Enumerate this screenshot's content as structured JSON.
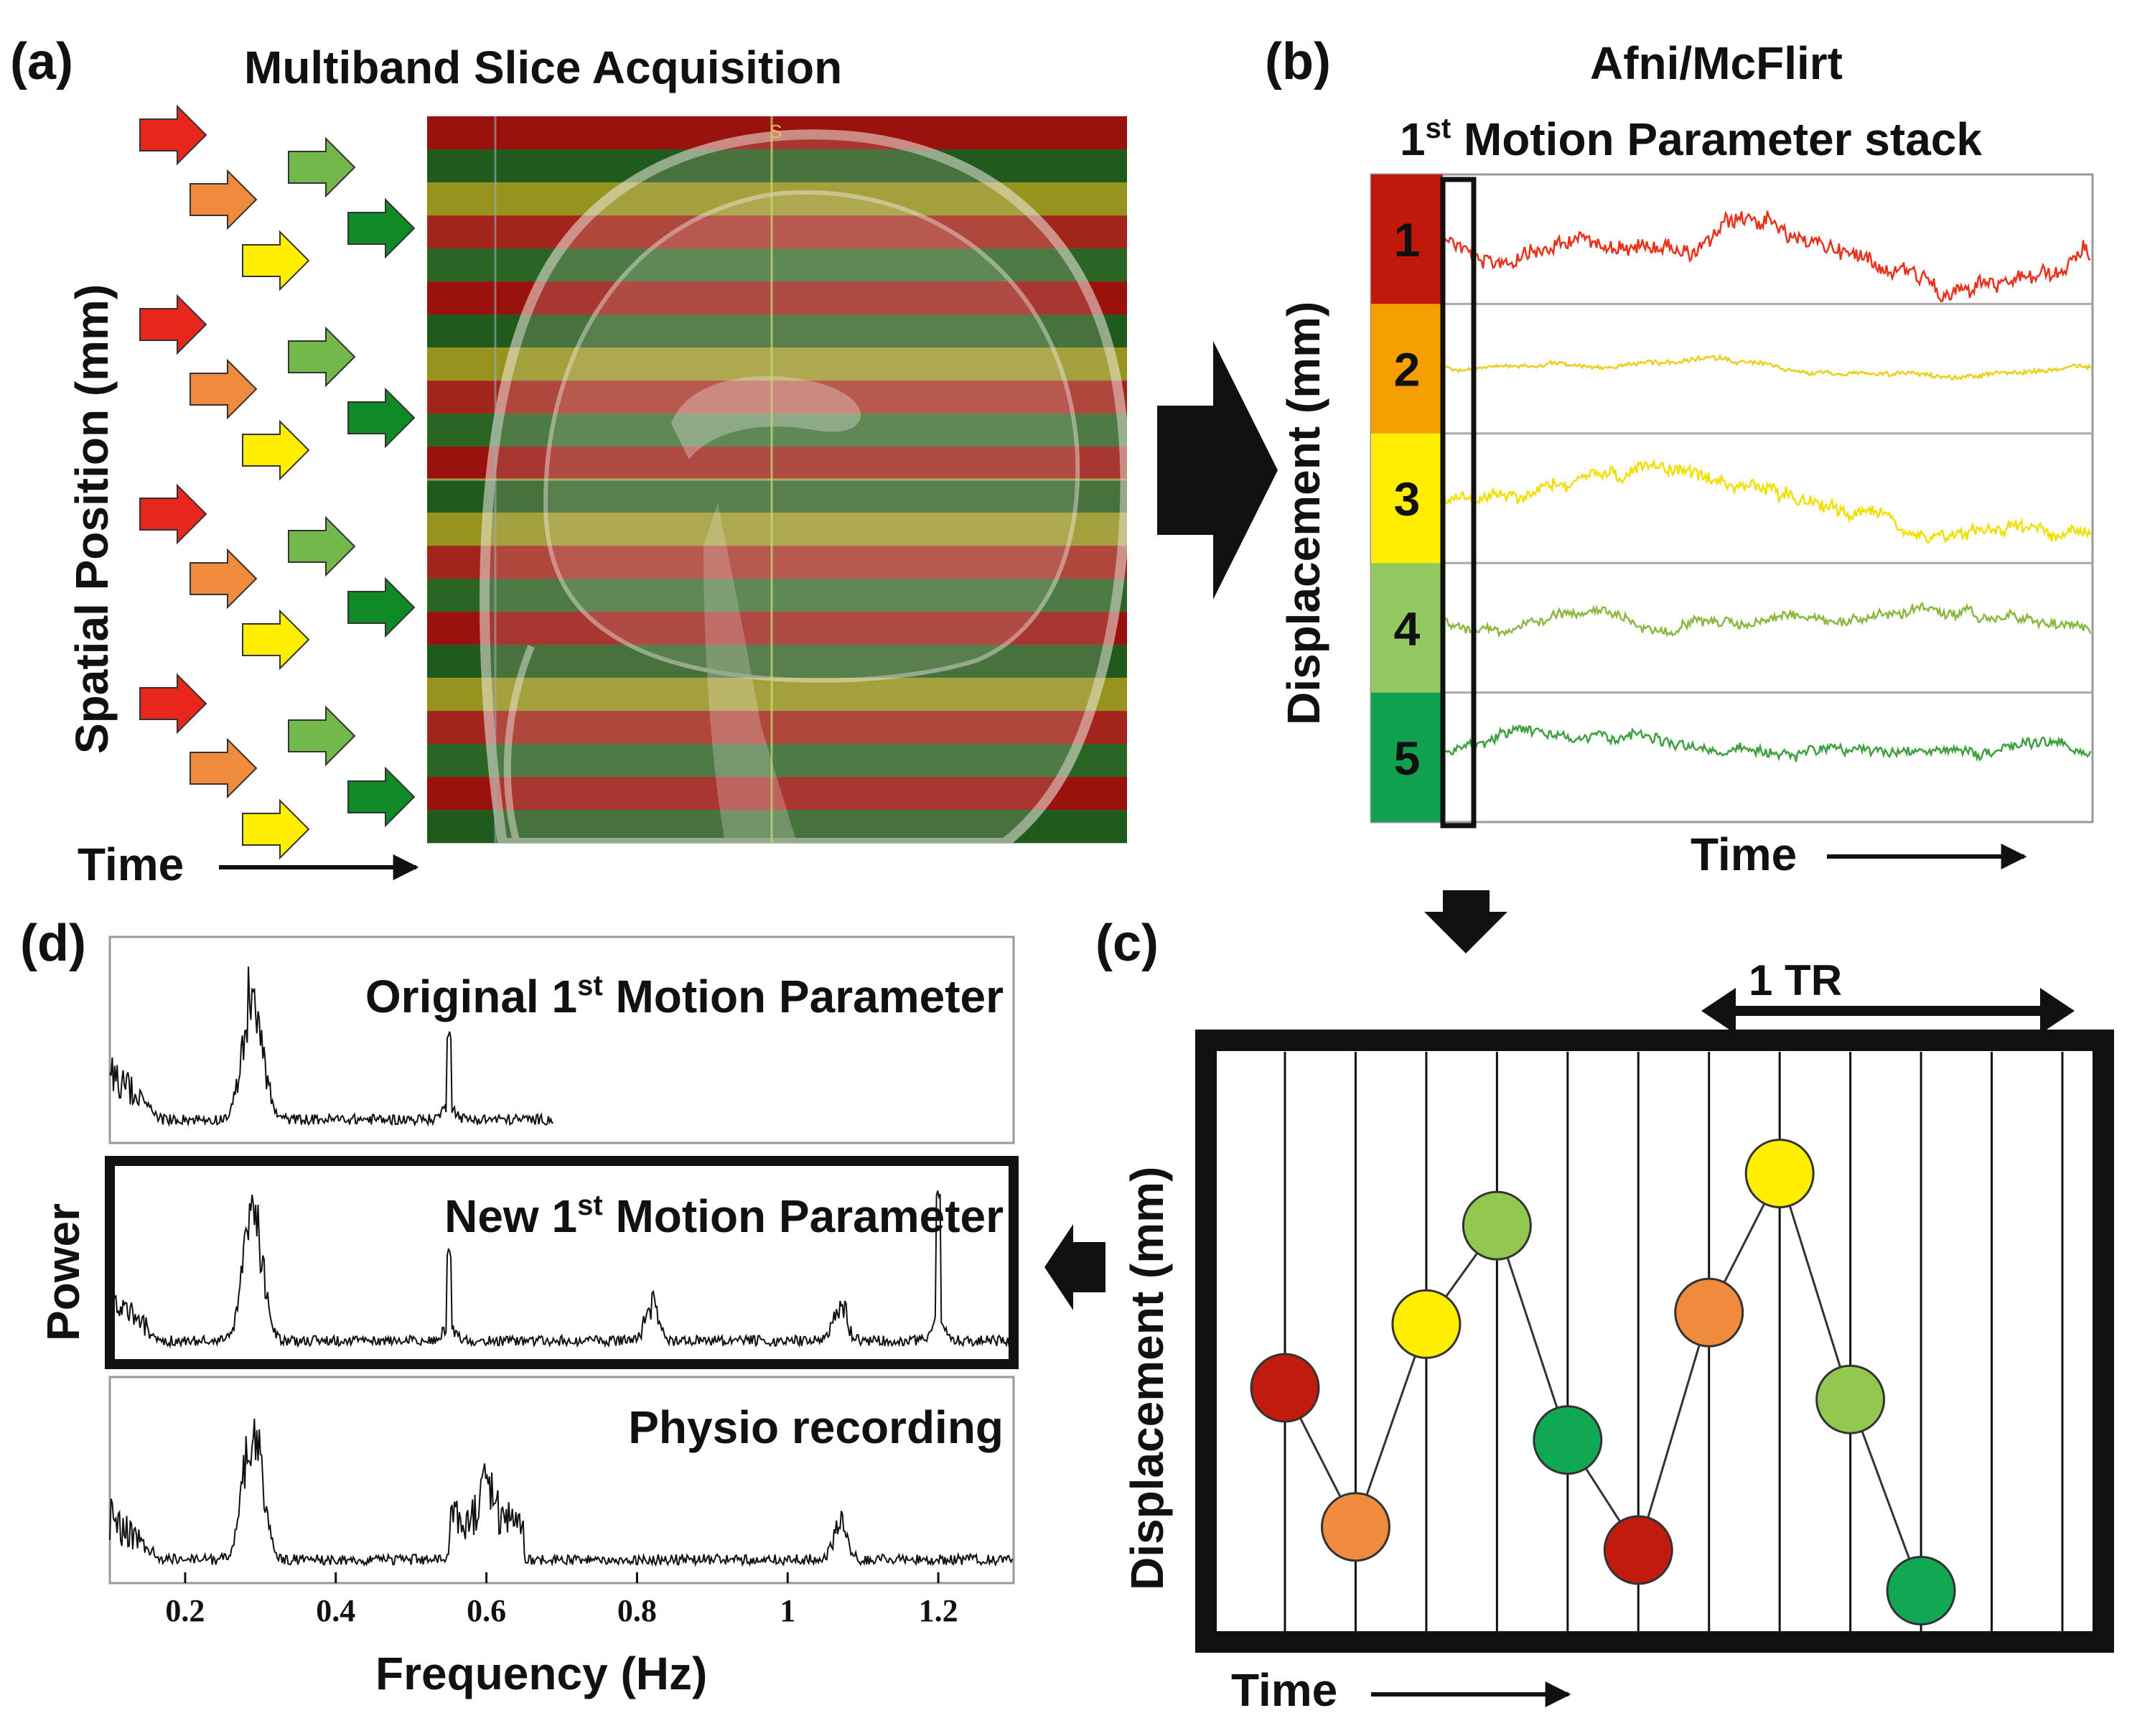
{
  "panels": {
    "a": {
      "label": "(a)",
      "title": "Multiband Slice Acquisition",
      "y_axis_label": "Spatial Position (mm)",
      "x_axis_label": "Time",
      "band_colors": [
        "#b80f0a",
        "#1f6b1f",
        "#b5b520",
        "#c4281e",
        "#2a7a2a"
      ],
      "arrow_colors": [
        "#e8261c",
        "#f08a3c",
        "#ffee00",
        "#72b84a",
        "#0f8a26"
      ]
    },
    "b": {
      "label": "(b)",
      "title_line1": "Afni/McFlirt",
      "title_line2_sup": "st",
      "title_line2_prefix": "1",
      "title_line2_rest": " Motion Parameter stack",
      "y_axis_label": "Displacement (mm)",
      "x_axis_label": "Time",
      "traces": [
        {
          "index": "1",
          "swatch": "#c1180c",
          "line": "#e8321c"
        },
        {
          "index": "2",
          "swatch": "#f5a000",
          "line": "#e8d020"
        },
        {
          "index": "3",
          "swatch": "#ffee00",
          "line": "#f0e000"
        },
        {
          "index": "4",
          "swatch": "#92c860",
          "line": "#8ab840"
        },
        {
          "index": "5",
          "swatch": "#10a050",
          "line": "#40a040"
        }
      ]
    },
    "c": {
      "label": "(c)",
      "tr_label": "1 TR",
      "y_axis_label": "Displacement (mm)",
      "x_axis_label": "Time",
      "points": [
        {
          "color": "#c11b0e"
        },
        {
          "color": "#f08a3c"
        },
        {
          "color": "#ffee00"
        },
        {
          "color": "#92c850"
        },
        {
          "color": "#10a852"
        },
        {
          "color": "#c11b0e"
        },
        {
          "color": "#f08a3c"
        },
        {
          "color": "#ffee00"
        },
        {
          "color": "#92c850"
        },
        {
          "color": "#10a852"
        }
      ]
    },
    "d": {
      "label": "(d)",
      "y_axis_label": "Power",
      "x_axis_label": "Frequency (Hz)",
      "spectra": [
        {
          "prefix": "Original 1",
          "sup": "st",
          "rest": " Motion Parameter"
        },
        {
          "prefix": "New 1",
          "sup": "st",
          "rest": " Motion Parameter"
        },
        {
          "prefix": "Physio recording",
          "sup": "",
          "rest": ""
        }
      ],
      "x_ticks": [
        "0.2",
        "0.4",
        "0.6",
        "0.8",
        "1",
        "1.2"
      ]
    }
  },
  "chart_data": {
    "type": "line",
    "xlabel": "Frequency (Hz)",
    "ylabel": "Power",
    "xlim": [
      0.1,
      1.3
    ],
    "x_ticks": [
      0.2,
      0.4,
      0.6,
      0.8,
      1,
      1.2
    ],
    "series": [
      {
        "name": "Original 1st Motion Parameter",
        "peaks_hz": [
          0.29,
          0.55
        ],
        "x_max": 0.69
      },
      {
        "name": "New 1st Motion Parameter",
        "peaks_hz": [
          0.29,
          0.55,
          0.82,
          1.07,
          1.2
        ],
        "x_max": 1.3
      },
      {
        "name": "Physio recording",
        "peaks_hz": [
          0.29,
          0.6,
          1.07
        ],
        "x_max": 1.3
      }
    ]
  }
}
